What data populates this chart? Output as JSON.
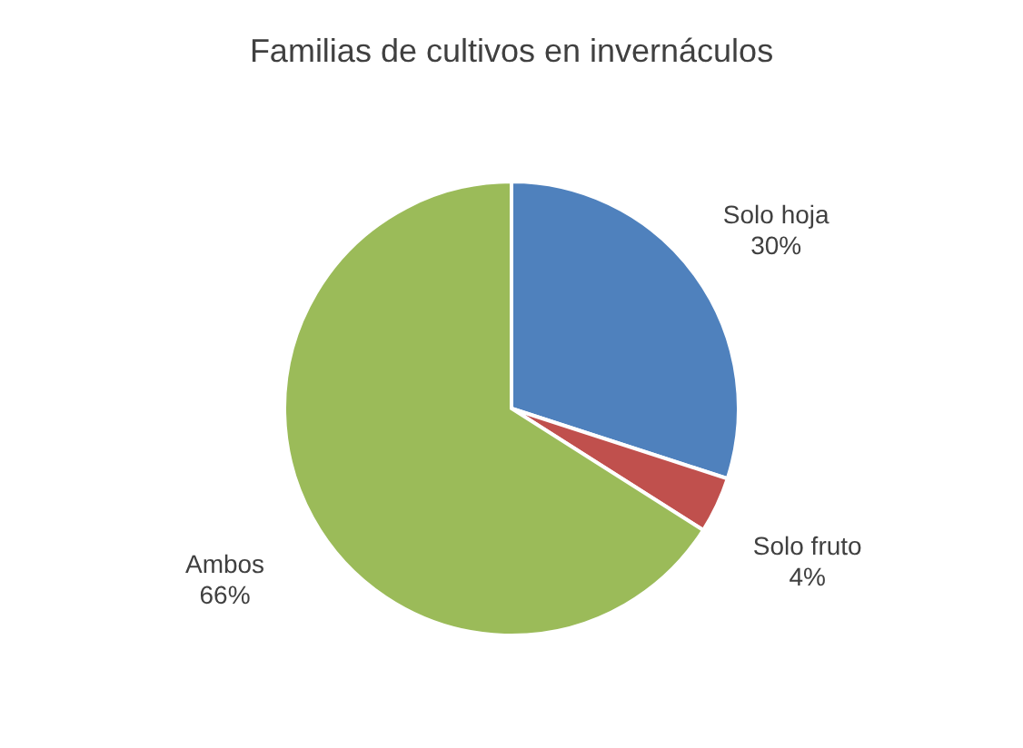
{
  "chart_data": {
    "type": "pie",
    "title": "Familias de cultivos en invernáculos",
    "categories": [
      "Solo hoja",
      "Solo fruto",
      "Ambos"
    ],
    "values": [
      30,
      4,
      66
    ],
    "colors": [
      "#4f81bd",
      "#c0504d",
      "#9bbb59"
    ],
    "value_labels": [
      "30%",
      "4%",
      "66%"
    ],
    "legend": false
  }
}
